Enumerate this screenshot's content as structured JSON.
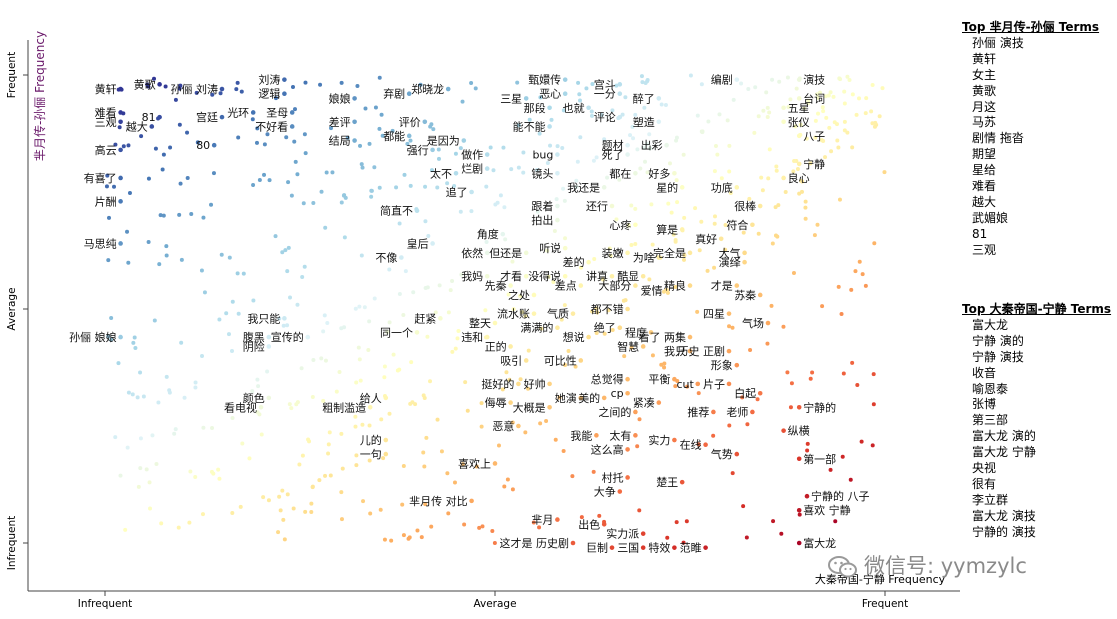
{
  "chart_data": {
    "type": "scatter",
    "title": "",
    "xlabel": "大秦帝国-宁静 Frequency",
    "ylabel": "芈月传-孙俪 Frequency",
    "x_ticks": [
      "Infrequent",
      "Average",
      "Frequent"
    ],
    "y_ticks": [
      "Frequent",
      "Average",
      "Infrequent"
    ],
    "grid": false,
    "legend": "none",
    "color_scale": {
      "low": "#313695",
      "mid": "#ffffbf",
      "high": "#a50026",
      "stops": [
        "#313695",
        "#4575b4",
        "#74add1",
        "#abd9e9",
        "#e0f3f8",
        "#ffffbf",
        "#fee090",
        "#fdae61",
        "#f46d43",
        "#d73027",
        "#a50026"
      ]
    },
    "labeled_points": [
      {
        "term": "黄轩",
        "x": 0.02,
        "y": 0.97
      },
      {
        "term": "黄歌",
        "x": 0.07,
        "y": 0.98
      },
      {
        "term": "81",
        "x": 0.07,
        "y": 0.91
      },
      {
        "term": "难看",
        "x": 0.02,
        "y": 0.92
      },
      {
        "term": "三观",
        "x": 0.02,
        "y": 0.9
      },
      {
        "term": "越大",
        "x": 0.06,
        "y": 0.89
      },
      {
        "term": "孙俪 刘涛",
        "x": 0.15,
        "y": 0.97
      },
      {
        "term": "刘涛",
        "x": 0.23,
        "y": 0.99
      },
      {
        "term": "逻辑",
        "x": 0.23,
        "y": 0.96
      },
      {
        "term": "宫廷",
        "x": 0.15,
        "y": 0.91
      },
      {
        "term": "光环",
        "x": 0.19,
        "y": 0.92
      },
      {
        "term": "圣母",
        "x": 0.24,
        "y": 0.92
      },
      {
        "term": "不好看",
        "x": 0.24,
        "y": 0.89
      },
      {
        "term": "80",
        "x": 0.14,
        "y": 0.85
      },
      {
        "term": "高云",
        "x": 0.02,
        "y": 0.84
      },
      {
        "term": "有喜了",
        "x": 0.02,
        "y": 0.78
      },
      {
        "term": "片酬",
        "x": 0.02,
        "y": 0.73
      },
      {
        "term": "马思纯",
        "x": 0.02,
        "y": 0.64
      },
      {
        "term": "孙俪 娘娘",
        "x": 0.02,
        "y": 0.44
      },
      {
        "term": "娘娘",
        "x": 0.32,
        "y": 0.95
      },
      {
        "term": "弃剧",
        "x": 0.39,
        "y": 0.96
      },
      {
        "term": "差评",
        "x": 0.32,
        "y": 0.9
      },
      {
        "term": "评价",
        "x": 0.41,
        "y": 0.9
      },
      {
        "term": "都能",
        "x": 0.39,
        "y": 0.87
      },
      {
        "term": "结局",
        "x": 0.32,
        "y": 0.86
      },
      {
        "term": "强行",
        "x": 0.42,
        "y": 0.84
      },
      {
        "term": "郑晓龙",
        "x": 0.44,
        "y": 0.97
      },
      {
        "term": "是因为",
        "x": 0.46,
        "y": 0.86
      },
      {
        "term": "做作",
        "x": 0.49,
        "y": 0.83
      },
      {
        "term": "烂剧",
        "x": 0.49,
        "y": 0.8
      },
      {
        "term": "太不",
        "x": 0.45,
        "y": 0.79
      },
      {
        "term": "追了",
        "x": 0.47,
        "y": 0.75
      },
      {
        "term": "简直不",
        "x": 0.4,
        "y": 0.71
      },
      {
        "term": "皇后",
        "x": 0.42,
        "y": 0.64
      },
      {
        "term": "不像",
        "x": 0.38,
        "y": 0.61
      },
      {
        "term": "我只能",
        "x": 0.23,
        "y": 0.48
      },
      {
        "term": "腹黑",
        "x": 0.21,
        "y": 0.44
      },
      {
        "term": "阴险",
        "x": 0.21,
        "y": 0.42
      },
      {
        "term": "宣传的",
        "x": 0.26,
        "y": 0.44
      },
      {
        "term": "赶紧",
        "x": 0.43,
        "y": 0.48
      },
      {
        "term": "同一个",
        "x": 0.4,
        "y": 0.45
      },
      {
        "term": "颜色",
        "x": 0.21,
        "y": 0.31
      },
      {
        "term": "看电视",
        "x": 0.2,
        "y": 0.29
      },
      {
        "term": "给人",
        "x": 0.36,
        "y": 0.31
      },
      {
        "term": "粗制滥造",
        "x": 0.34,
        "y": 0.29
      },
      {
        "term": "儿的",
        "x": 0.36,
        "y": 0.22
      },
      {
        "term": "一句",
        "x": 0.36,
        "y": 0.19
      },
      {
        "term": "甄嬛传",
        "x": 0.59,
        "y": 0.99
      },
      {
        "term": "三星",
        "x": 0.54,
        "y": 0.95
      },
      {
        "term": "恶心",
        "x": 0.59,
        "y": 0.96
      },
      {
        "term": "那段",
        "x": 0.57,
        "y": 0.93
      },
      {
        "term": "能不能",
        "x": 0.57,
        "y": 0.89
      },
      {
        "term": "也就",
        "x": 0.62,
        "y": 0.93
      },
      {
        "term": "宫斗",
        "x": 0.66,
        "y": 0.98
      },
      {
        "term": "一分",
        "x": 0.66,
        "y": 0.96
      },
      {
        "term": "醉了",
        "x": 0.71,
        "y": 0.95
      },
      {
        "term": "评论",
        "x": 0.66,
        "y": 0.91
      },
      {
        "term": "塑造",
        "x": 0.71,
        "y": 0.9
      },
      {
        "term": "编剧",
        "x": 0.81,
        "y": 0.99
      },
      {
        "term": "演技",
        "x": 0.89,
        "y": 0.99
      },
      {
        "term": "台词",
        "x": 0.89,
        "y": 0.95
      },
      {
        "term": "五星",
        "x": 0.87,
        "y": 0.93
      },
      {
        "term": "张仪",
        "x": 0.87,
        "y": 0.9
      },
      {
        "term": "八子",
        "x": 0.89,
        "y": 0.87
      },
      {
        "term": "宁静",
        "x": 0.89,
        "y": 0.81
      },
      {
        "term": "良心",
        "x": 0.87,
        "y": 0.78
      },
      {
        "term": "bug",
        "x": 0.58,
        "y": 0.83
      },
      {
        "term": "镜头",
        "x": 0.58,
        "y": 0.79
      },
      {
        "term": "题材",
        "x": 0.67,
        "y": 0.85
      },
      {
        "term": "死了",
        "x": 0.67,
        "y": 0.83
      },
      {
        "term": "出彩",
        "x": 0.72,
        "y": 0.85
      },
      {
        "term": "都在",
        "x": 0.68,
        "y": 0.79
      },
      {
        "term": "我还是",
        "x": 0.64,
        "y": 0.76
      },
      {
        "term": "好多",
        "x": 0.73,
        "y": 0.79
      },
      {
        "term": "星的",
        "x": 0.74,
        "y": 0.76
      },
      {
        "term": "功底",
        "x": 0.81,
        "y": 0.76
      },
      {
        "term": "很棒",
        "x": 0.84,
        "y": 0.72
      },
      {
        "term": "符合",
        "x": 0.83,
        "y": 0.68
      },
      {
        "term": "跟着",
        "x": 0.58,
        "y": 0.72
      },
      {
        "term": "拍出",
        "x": 0.58,
        "y": 0.69
      },
      {
        "term": "还行",
        "x": 0.65,
        "y": 0.72
      },
      {
        "term": "心疼",
        "x": 0.68,
        "y": 0.68
      },
      {
        "term": "算是",
        "x": 0.74,
        "y": 0.67
      },
      {
        "term": "真好",
        "x": 0.79,
        "y": 0.65
      },
      {
        "term": "大气",
        "x": 0.82,
        "y": 0.62
      },
      {
        "term": "演绎",
        "x": 0.82,
        "y": 0.6
      },
      {
        "term": "角度",
        "x": 0.51,
        "y": 0.66
      },
      {
        "term": "依然",
        "x": 0.49,
        "y": 0.62
      },
      {
        "term": "但还是",
        "x": 0.54,
        "y": 0.62
      },
      {
        "term": "听说",
        "x": 0.59,
        "y": 0.63
      },
      {
        "term": "装嫩",
        "x": 0.67,
        "y": 0.62
      },
      {
        "term": "为啥",
        "x": 0.71,
        "y": 0.61
      },
      {
        "term": "完全是",
        "x": 0.75,
        "y": 0.62
      },
      {
        "term": "差的",
        "x": 0.62,
        "y": 0.6
      },
      {
        "term": "我妈",
        "x": 0.49,
        "y": 0.57
      },
      {
        "term": "才看",
        "x": 0.54,
        "y": 0.57
      },
      {
        "term": "先秦",
        "x": 0.52,
        "y": 0.55
      },
      {
        "term": "没得说",
        "x": 0.59,
        "y": 0.57
      },
      {
        "term": "差点",
        "x": 0.61,
        "y": 0.55
      },
      {
        "term": "讲真",
        "x": 0.65,
        "y": 0.57
      },
      {
        "term": "酷显",
        "x": 0.69,
        "y": 0.57
      },
      {
        "term": "大部分",
        "x": 0.68,
        "y": 0.55
      },
      {
        "term": "精良",
        "x": 0.75,
        "y": 0.55
      },
      {
        "term": "爱情",
        "x": 0.72,
        "y": 0.54
      },
      {
        "term": "才是",
        "x": 0.81,
        "y": 0.55
      },
      {
        "term": "之处",
        "x": 0.55,
        "y": 0.53
      },
      {
        "term": "苏秦",
        "x": 0.84,
        "y": 0.53
      },
      {
        "term": "四星",
        "x": 0.8,
        "y": 0.49
      },
      {
        "term": "气场",
        "x": 0.85,
        "y": 0.47
      },
      {
        "term": "流水账",
        "x": 0.55,
        "y": 0.49
      },
      {
        "term": "气质",
        "x": 0.6,
        "y": 0.49
      },
      {
        "term": "都不错",
        "x": 0.67,
        "y": 0.5
      },
      {
        "term": "整天",
        "x": 0.5,
        "y": 0.47
      },
      {
        "term": "满满的",
        "x": 0.58,
        "y": 0.46
      },
      {
        "term": "想说",
        "x": 0.62,
        "y": 0.44
      },
      {
        "term": "绝了",
        "x": 0.66,
        "y": 0.46
      },
      {
        "term": "程度",
        "x": 0.7,
        "y": 0.45
      },
      {
        "term": "看了 两集",
        "x": 0.75,
        "y": 0.44
      },
      {
        "term": "违和",
        "x": 0.49,
        "y": 0.44
      },
      {
        "term": "正的",
        "x": 0.52,
        "y": 0.42
      },
      {
        "term": "智慧",
        "x": 0.69,
        "y": 0.42
      },
      {
        "term": "我只",
        "x": 0.75,
        "y": 0.41
      },
      {
        "term": "历史 正剧",
        "x": 0.8,
        "y": 0.41
      },
      {
        "term": "吸引",
        "x": 0.54,
        "y": 0.39
      },
      {
        "term": "可比性",
        "x": 0.61,
        "y": 0.39
      },
      {
        "term": "形象",
        "x": 0.81,
        "y": 0.38
      },
      {
        "term": "挺好的",
        "x": 0.53,
        "y": 0.34
      },
      {
        "term": "好帅",
        "x": 0.57,
        "y": 0.34
      },
      {
        "term": "总觉得",
        "x": 0.67,
        "y": 0.35
      },
      {
        "term": "平衡",
        "x": 0.73,
        "y": 0.35
      },
      {
        "term": "cut",
        "x": 0.76,
        "y": 0.34
      },
      {
        "term": "片子",
        "x": 0.8,
        "y": 0.34
      },
      {
        "term": "侮辱",
        "x": 0.52,
        "y": 0.3
      },
      {
        "term": "大概是",
        "x": 0.57,
        "y": 0.29
      },
      {
        "term": "她演",
        "x": 0.61,
        "y": 0.31
      },
      {
        "term": "美的",
        "x": 0.64,
        "y": 0.31
      },
      {
        "term": "cp",
        "x": 0.67,
        "y": 0.32
      },
      {
        "term": "紧凑",
        "x": 0.71,
        "y": 0.3
      },
      {
        "term": "白起",
        "x": 0.84,
        "y": 0.32
      },
      {
        "term": "之间的",
        "x": 0.68,
        "y": 0.28
      },
      {
        "term": "推荐",
        "x": 0.78,
        "y": 0.28
      },
      {
        "term": "老师",
        "x": 0.83,
        "y": 0.28
      },
      {
        "term": "宁静的",
        "x": 0.89,
        "y": 0.29
      },
      {
        "term": "恶意",
        "x": 0.53,
        "y": 0.25
      },
      {
        "term": "我能",
        "x": 0.63,
        "y": 0.23
      },
      {
        "term": "太有",
        "x": 0.68,
        "y": 0.23
      },
      {
        "term": "实力",
        "x": 0.73,
        "y": 0.22
      },
      {
        "term": "在线",
        "x": 0.77,
        "y": 0.21
      },
      {
        "term": "纵横",
        "x": 0.87,
        "y": 0.24
      },
      {
        "term": "这么高",
        "x": 0.67,
        "y": 0.2
      },
      {
        "term": "气势",
        "x": 0.81,
        "y": 0.19
      },
      {
        "term": "第一部",
        "x": 0.89,
        "y": 0.18
      },
      {
        "term": "喜欢上",
        "x": 0.5,
        "y": 0.17
      },
      {
        "term": "村托",
        "x": 0.67,
        "y": 0.14
      },
      {
        "term": "大争",
        "x": 0.66,
        "y": 0.11
      },
      {
        "term": "楚王",
        "x": 0.74,
        "y": 0.13
      },
      {
        "term": "芈月传 对比",
        "x": 0.47,
        "y": 0.09
      },
      {
        "term": "宁静的 八子",
        "x": 0.9,
        "y": 0.1
      },
      {
        "term": "喜欢 宁静",
        "x": 0.89,
        "y": 0.07
      },
      {
        "term": "芈月",
        "x": 0.58,
        "y": 0.05
      },
      {
        "term": "出色",
        "x": 0.64,
        "y": 0.04
      },
      {
        "term": "实力派",
        "x": 0.69,
        "y": 0.02
      },
      {
        "term": "这才是 历史剧",
        "x": 0.6,
        "y": 0.0
      },
      {
        "term": "巨制",
        "x": 0.65,
        "y": -0.01
      },
      {
        "term": "三国",
        "x": 0.69,
        "y": -0.01
      },
      {
        "term": "特效",
        "x": 0.73,
        "y": -0.01
      },
      {
        "term": "范睢",
        "x": 0.77,
        "y": -0.01
      },
      {
        "term": "富大龙",
        "x": 0.89,
        "y": 0.0
      }
    ]
  },
  "sidebar": {
    "top_header": "Top 芈月传-孙俪 Terms",
    "top_terms": [
      "孙俪 演技",
      "黄轩",
      "女主",
      "黄歌",
      "月这",
      "马苏",
      "剧情 拖沓",
      "期望",
      "星给",
      "难看",
      "越大",
      "武媚娘",
      "81",
      "三观"
    ],
    "bottom_header": "Top 大秦帝国-宁静 Terms",
    "bottom_terms": [
      "富大龙",
      "宁静 演的",
      "宁静 演技",
      "收音",
      "喻恩泰",
      "张博",
      "第三部",
      "富大龙 演的",
      "富大龙 宁静",
      "央视",
      "很有",
      "李立群",
      "富大龙 演技",
      "宁静的 演技"
    ]
  },
  "watermark": {
    "text": "微信号: yymzylc"
  }
}
